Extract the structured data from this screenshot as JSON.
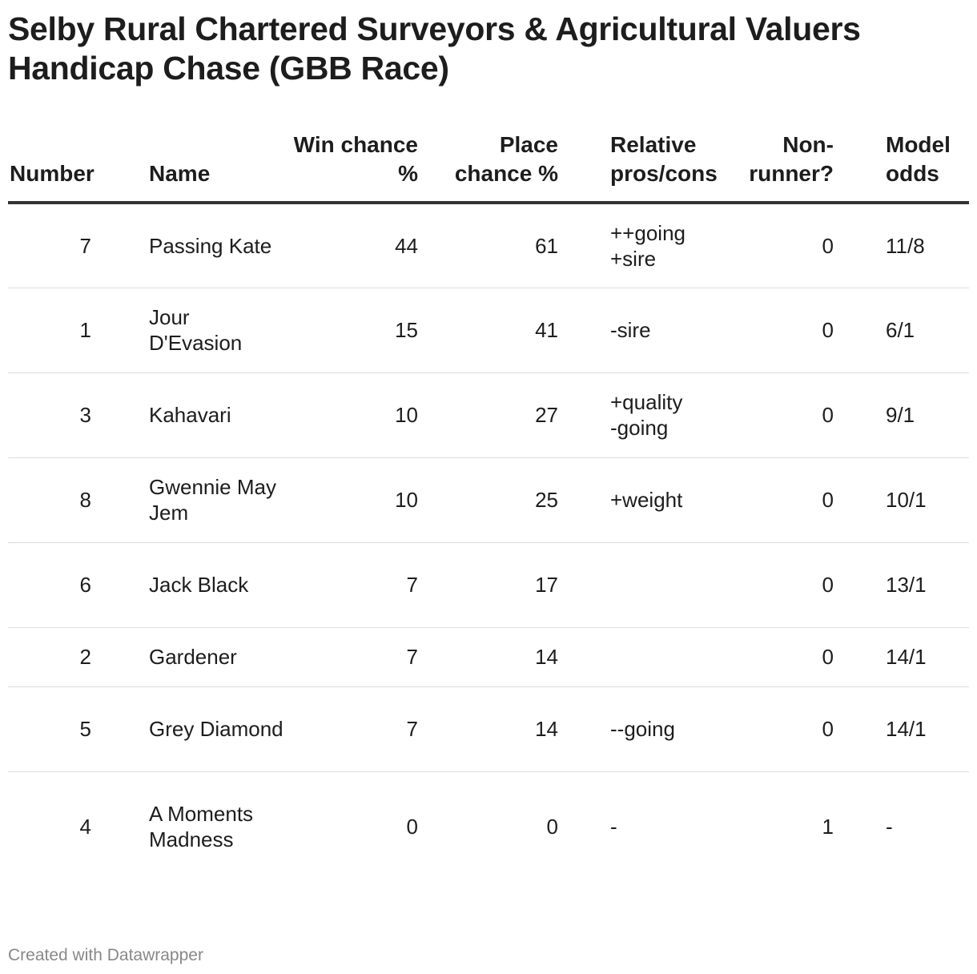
{
  "title": "Selby Rural Chartered Surveyors & Agricultural Valuers Handicap Chase (GBB Race)",
  "columns": {
    "number": "Number",
    "name": "Name",
    "win": "Win chance %",
    "place": "Place chance %",
    "relative": "Relative pros/cons",
    "non_runner": "Non-runner?",
    "odds": "Model odds"
  },
  "rows": [
    {
      "number": "7",
      "name": "Passing Kate",
      "win": "44",
      "place": "61",
      "relative": "++going\n+sire",
      "non_runner": "0",
      "odds": "11/8"
    },
    {
      "number": "1",
      "name": "Jour D'Evasion",
      "win": "15",
      "place": "41",
      "relative": "-sire",
      "non_runner": "0",
      "odds": "6/1"
    },
    {
      "number": "3",
      "name": "Kahavari",
      "win": "10",
      "place": "27",
      "relative": "+quality\n-going",
      "non_runner": "0",
      "odds": "9/1"
    },
    {
      "number": "8",
      "name": "Gwennie May Jem",
      "win": "10",
      "place": "25",
      "relative": "+weight",
      "non_runner": "0",
      "odds": "10/1"
    },
    {
      "number": "6",
      "name": "Jack Black",
      "win": "7",
      "place": "17",
      "relative": "",
      "non_runner": "0",
      "odds": "13/1"
    },
    {
      "number": "2",
      "name": "Gardener",
      "win": "7",
      "place": "14",
      "relative": "",
      "non_runner": "0",
      "odds": "14/1"
    },
    {
      "number": "5",
      "name": "Grey Diamond",
      "win": "7",
      "place": "14",
      "relative": "--going",
      "non_runner": "0",
      "odds": "14/1"
    },
    {
      "number": "4",
      "name": "A Moments Madness",
      "win": "0",
      "place": "0",
      "relative": "-",
      "non_runner": "1",
      "odds": "-"
    }
  ],
  "footer": "Created with Datawrapper",
  "chart_data": {
    "type": "table",
    "title": "Selby Rural Chartered Surveyors & Agricultural Valuers Handicap Chase (GBB Race)",
    "headers": [
      "Number",
      "Name",
      "Win chance %",
      "Place chance %",
      "Relative pros/cons",
      "Non-runner?",
      "Model odds"
    ],
    "rows": [
      [
        7,
        "Passing Kate",
        44,
        61,
        "++going +sire",
        0,
        "11/8"
      ],
      [
        1,
        "Jour D'Evasion",
        15,
        41,
        "-sire",
        0,
        "6/1"
      ],
      [
        3,
        "Kahavari",
        10,
        27,
        "+quality -going",
        0,
        "9/1"
      ],
      [
        8,
        "Gwennie May Jem",
        10,
        25,
        "+weight",
        0,
        "10/1"
      ],
      [
        6,
        "Jack Black",
        7,
        17,
        "",
        0,
        "13/1"
      ],
      [
        2,
        "Gardener",
        7,
        14,
        "",
        0,
        "14/1"
      ],
      [
        5,
        "Grey Diamond",
        7,
        14,
        "--going",
        0,
        "14/1"
      ],
      [
        4,
        "A Moments Madness",
        0,
        0,
        "-",
        1,
        "-"
      ]
    ]
  }
}
